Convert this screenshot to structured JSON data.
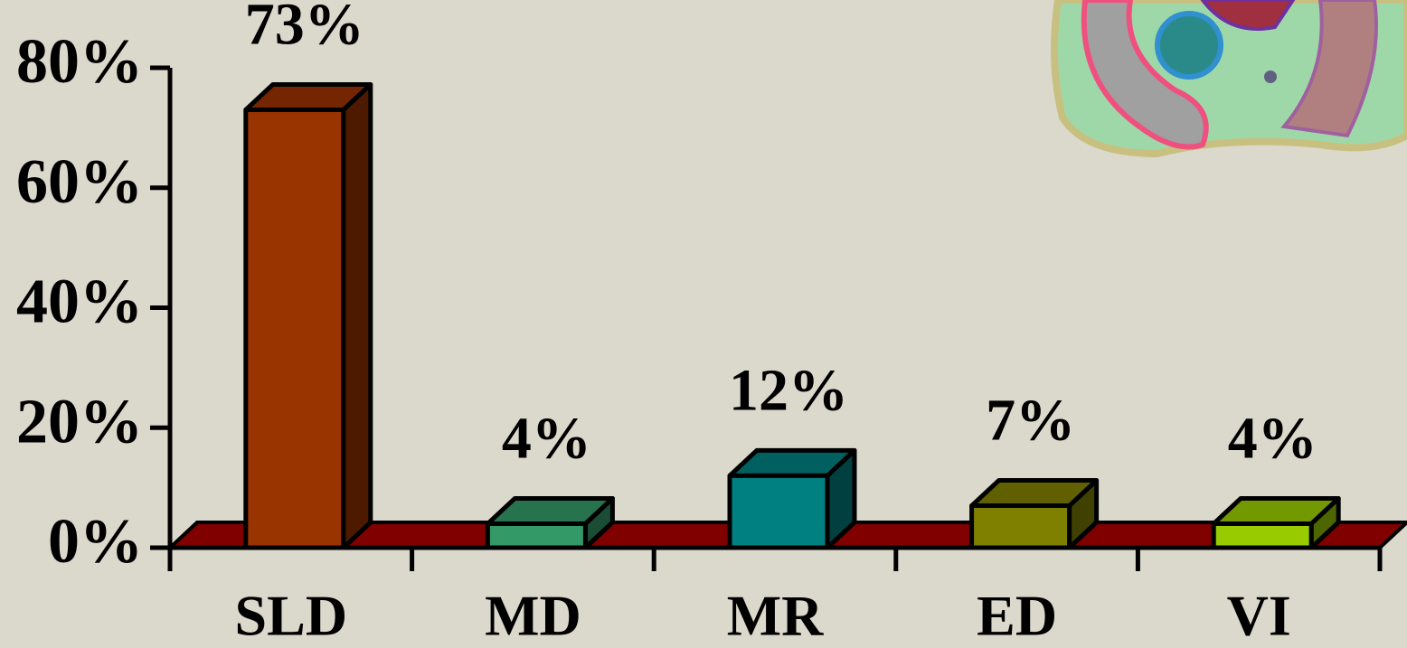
{
  "chart_data": {
    "type": "bar3d",
    "categories": [
      "SLD",
      "MD",
      "MR",
      "ED",
      "VI"
    ],
    "values": [
      73,
      4,
      12,
      7,
      4
    ],
    "value_labels": [
      "73%",
      "4%",
      "12%",
      "7%",
      "4%"
    ],
    "colors": [
      "#993300",
      "#339966",
      "#008080",
      "#808000",
      "#99cc00"
    ],
    "floor_color": "#800000",
    "ylim": [
      0,
      80
    ],
    "yticks": [
      {
        "value": 0,
        "label": "0%"
      },
      {
        "value": 20,
        "label": "20%"
      },
      {
        "value": 40,
        "label": "40%"
      },
      {
        "value": 60,
        "label": "60%"
      },
      {
        "value": 80,
        "label": "80%"
      }
    ]
  }
}
